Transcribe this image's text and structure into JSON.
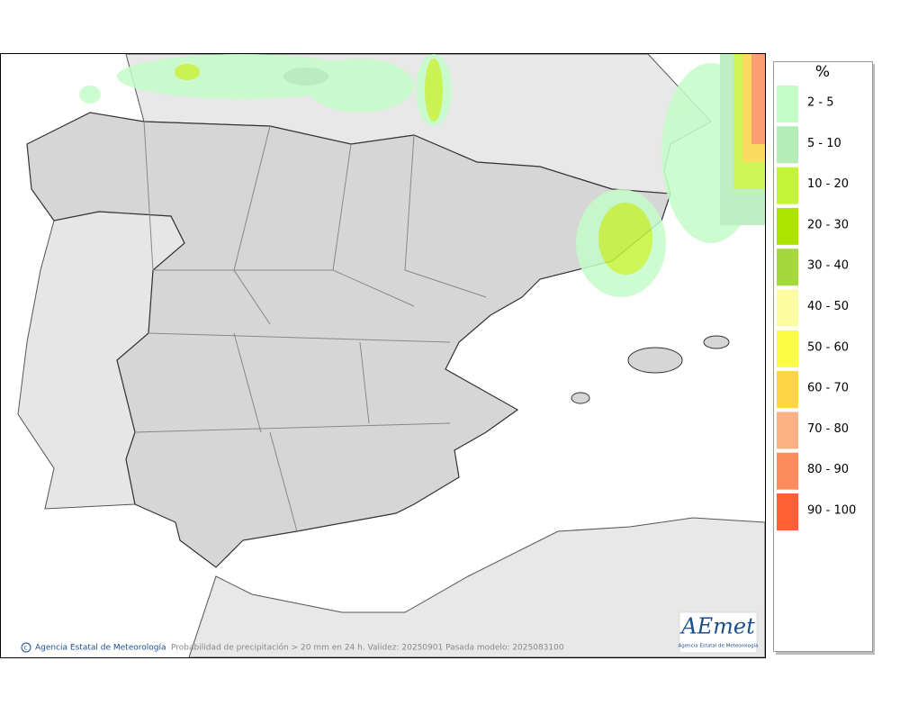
{
  "legend": {
    "title": "%",
    "items": [
      {
        "label": "2 - 5",
        "color": "#c4fcc8"
      },
      {
        "label": "5 - 10",
        "color": "#b4ecb8"
      },
      {
        "label": "10 - 20",
        "color": "#c4f438"
      },
      {
        "label": "20 - 30",
        "color": "#ace400"
      },
      {
        "label": "30 - 40",
        "color": "#a4d83c"
      },
      {
        "label": "40 - 50",
        "color": "#fcfca0"
      },
      {
        "label": "50 - 60",
        "color": "#fcfc44"
      },
      {
        "label": "60 - 70",
        "color": "#fcd444"
      },
      {
        "label": "70 - 80",
        "color": "#fcb084"
      },
      {
        "label": "80 - 90",
        "color": "#fc8c5c"
      },
      {
        "label": "90 - 100",
        "color": "#fc6034"
      }
    ]
  },
  "footer": {
    "agency": "Agencia Estatal de Meteorología",
    "caption": "Probabilidad de precipitación > 20 mm en 24 h. Validez: 20250901 Pasada modelo: 2025083100"
  },
  "logo": {
    "name": "AEmet",
    "subtitle": "Agencia Estatal de Meteorología"
  }
}
